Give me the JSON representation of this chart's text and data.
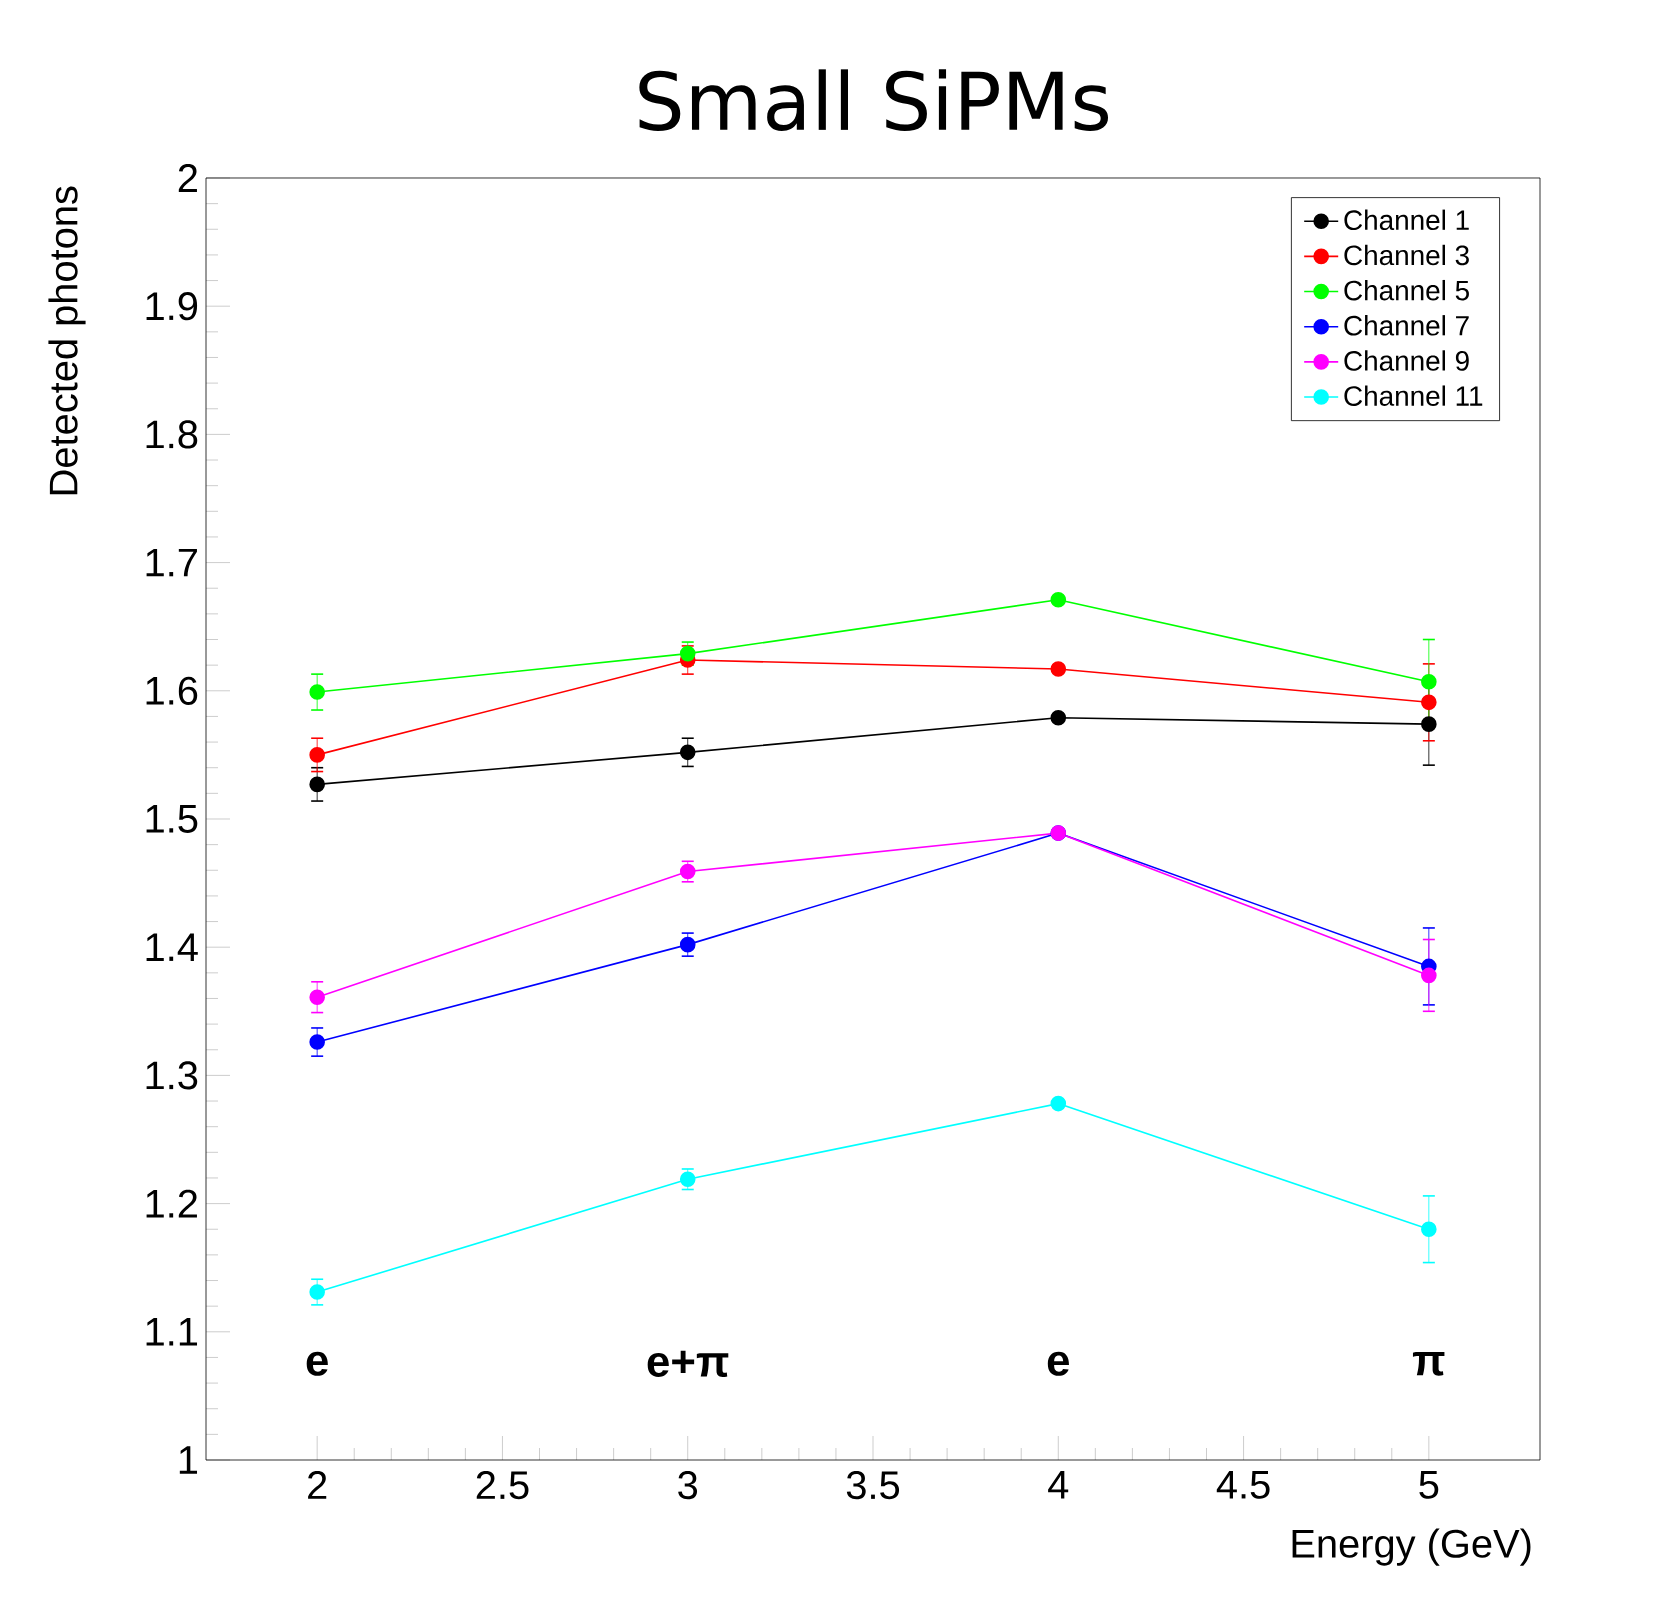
{
  "chart_data": {
    "type": "line",
    "title": "Small SiPMs",
    "xlabel": "Energy (GeV)",
    "ylabel": "Detected photons",
    "xlim": [
      1.7,
      5.3
    ],
    "ylim": [
      1,
      2
    ],
    "xticks": [
      2,
      2.5,
      3,
      3.5,
      4,
      4.5,
      5
    ],
    "yticks": [
      1,
      1.1,
      1.2,
      1.3,
      1.4,
      1.5,
      1.6,
      1.7,
      1.8,
      1.9,
      2
    ],
    "x": [
      2,
      3,
      4,
      5
    ],
    "series": [
      {
        "name": "Channel 1",
        "color": "#000000",
        "values": [
          1.527,
          1.552,
          1.579,
          1.574
        ],
        "errors": [
          0.013,
          0.011,
          0.003,
          0.032
        ]
      },
      {
        "name": "Channel 3",
        "color": "#ff0000",
        "values": [
          1.55,
          1.624,
          1.617,
          1.591
        ],
        "errors": [
          0.013,
          0.011,
          0.003,
          0.03
        ]
      },
      {
        "name": "Channel 5",
        "color": "#00ff00",
        "values": [
          1.599,
          1.629,
          1.671,
          1.607
        ],
        "errors": [
          0.014,
          0.009,
          0.003,
          0.033
        ]
      },
      {
        "name": "Channel 7",
        "color": "#0000ff",
        "values": [
          1.326,
          1.402,
          1.489,
          1.385
        ],
        "errors": [
          0.011,
          0.009,
          0.003,
          0.03
        ]
      },
      {
        "name": "Channel 9",
        "color": "#ff00ff",
        "values": [
          1.361,
          1.459,
          1.489,
          1.378
        ],
        "errors": [
          0.012,
          0.008,
          0.003,
          0.028
        ]
      },
      {
        "name": "Channel 11",
        "color": "#00ffff",
        "values": [
          1.131,
          1.219,
          1.278,
          1.18
        ],
        "errors": [
          0.01,
          0.008,
          0.003,
          0.026
        ]
      }
    ],
    "annotations": [
      "e",
      "e+π",
      "e",
      "π"
    ],
    "legend": "top right",
    "marker": "circle",
    "line_style": "solid",
    "grid": false
  }
}
